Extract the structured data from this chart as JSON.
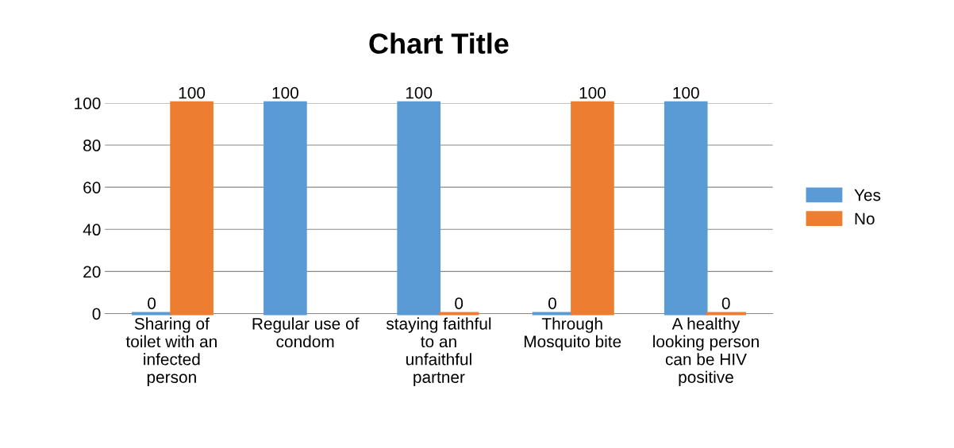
{
  "chart_data": {
    "type": "bar",
    "title": "Chart Title",
    "categories": [
      "Sharing of\ntoilet with an\ninfected\nperson",
      "Regular use of\ncondom",
      "staying faithful\nto an\nunfaithful\npartner",
      "Through\nMosquito bite",
      "A healthy\nlooking person\ncan be HIV\npositive"
    ],
    "series": [
      {
        "name": "Yes",
        "color": "#5b9bd5",
        "values": [
          0,
          100,
          100,
          0,
          100
        ]
      },
      {
        "name": "No",
        "color": "#ed7d31",
        "values": [
          100,
          null,
          0,
          100,
          0
        ]
      }
    ],
    "ylim": [
      0,
      100
    ],
    "yticks": [
      0,
      20,
      40,
      60,
      80,
      100
    ],
    "grid": "y",
    "legend": "right",
    "data_labels": true
  }
}
